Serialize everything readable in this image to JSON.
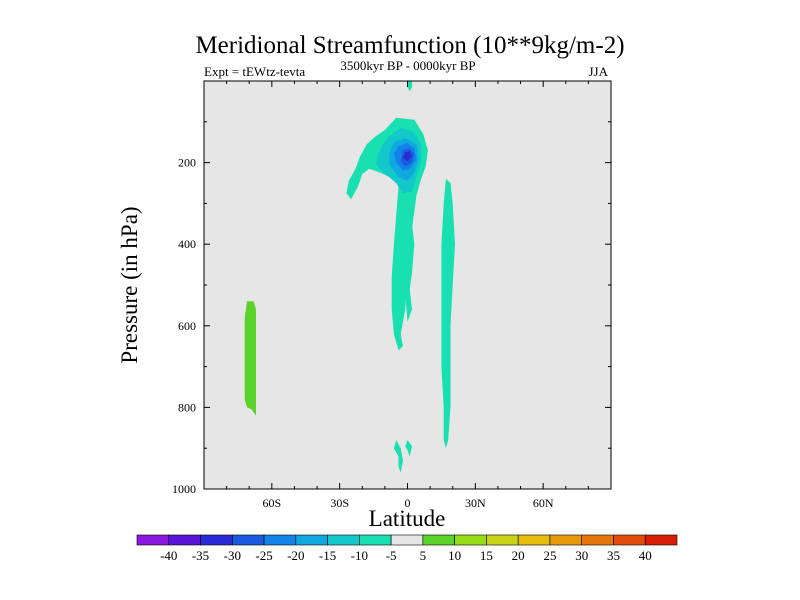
{
  "chart_data": {
    "type": "contour",
    "title": "Meridional Streamfunction (10**9kg/m-2)",
    "left_subtitle": "Expt = tEWtz-tevta",
    "center_subtitle": "3500kyr BP - 0000kyr BP",
    "right_subtitle": "JJA",
    "xlabel": "Latitude",
    "ylabel": "Pressure (in hPa)",
    "xlim": [
      -90,
      90
    ],
    "ylim": [
      0,
      1000
    ],
    "x_ticks": [
      {
        "value": -60,
        "label": "60S"
      },
      {
        "value": -30,
        "label": "30S"
      },
      {
        "value": 0,
        "label": "0"
      },
      {
        "value": 30,
        "label": "30N"
      },
      {
        "value": 60,
        "label": "60N"
      }
    ],
    "y_ticks": [
      {
        "value": 200,
        "label": "200"
      },
      {
        "value": 400,
        "label": "400"
      },
      {
        "value": 600,
        "label": "600"
      },
      {
        "value": 800,
        "label": "800"
      },
      {
        "value": 1000,
        "label": "1000"
      }
    ],
    "levels": [
      -40,
      -35,
      -30,
      -25,
      -20,
      -15,
      -10,
      -5,
      5,
      10,
      15,
      20,
      25,
      30,
      35,
      40
    ],
    "level_labels": [
      "-40",
      "-35",
      "-30",
      "-25",
      "-20",
      "-15",
      "-10",
      "-5",
      "5",
      "10",
      "15",
      "20",
      "25",
      "30",
      "35",
      "40"
    ],
    "colors": [
      "#8a18e0",
      "#5a14d8",
      "#2a2ad8",
      "#1a5ae0",
      "#1282e8",
      "#10a8e0",
      "#12c8c8",
      "#18e0b0",
      "#e6e6e6",
      "#5ad22a",
      "#96dc14",
      "#c8d214",
      "#e6bc0a",
      "#e69a0a",
      "#e6760a",
      "#e24c0a",
      "#d81e08"
    ],
    "background_color": "#e6e6e6",
    "regions": [
      {
        "name": "cyan-upper-lobe",
        "value": -7,
        "polygon": [
          [
            -10,
            120
          ],
          [
            -5,
            90
          ],
          [
            3,
            95
          ],
          [
            7,
            130
          ],
          [
            9,
            170
          ],
          [
            8,
            210
          ],
          [
            6,
            240
          ],
          [
            4,
            280
          ],
          [
            3,
            320
          ],
          [
            1,
            400
          ],
          [
            0,
            480
          ],
          [
            -1,
            560
          ],
          [
            -3,
            620
          ],
          [
            -2,
            650
          ],
          [
            -4,
            660
          ],
          [
            -6,
            620
          ],
          [
            -7,
            560
          ],
          [
            -7,
            480
          ],
          [
            -6,
            400
          ],
          [
            -5,
            330
          ],
          [
            -4,
            260
          ],
          [
            -6,
            240
          ],
          [
            -12,
            225
          ],
          [
            -17,
            215
          ],
          [
            -20,
            228
          ],
          [
            -22,
            260
          ],
          [
            -25,
            290
          ],
          [
            -27,
            275
          ],
          [
            -26,
            245
          ],
          [
            -23,
            215
          ],
          [
            -21,
            185
          ],
          [
            -18,
            155
          ],
          [
            -14,
            135
          ]
        ]
      },
      {
        "name": "blue-10",
        "value": -12,
        "polygon": [
          [
            -8,
            135
          ],
          [
            -3,
            115
          ],
          [
            3,
            125
          ],
          [
            6,
            155
          ],
          [
            6,
            195
          ],
          [
            4,
            235
          ],
          [
            2,
            270
          ],
          [
            -2,
            275
          ],
          [
            -5,
            250
          ],
          [
            -11,
            222
          ],
          [
            -14,
            205
          ],
          [
            -13,
            180
          ],
          [
            -11,
            155
          ]
        ]
      },
      {
        "name": "blue-15",
        "value": -17,
        "polygon": [
          [
            -6,
            150
          ],
          [
            -1,
            140
          ],
          [
            4,
            155
          ],
          [
            5,
            190
          ],
          [
            3,
            225
          ],
          [
            0,
            245
          ],
          [
            -4,
            235
          ],
          [
            -8,
            205
          ],
          [
            -8,
            175
          ]
        ]
      },
      {
        "name": "blue-20",
        "value": -22,
        "polygon": [
          [
            -4,
            160
          ],
          [
            0,
            152
          ],
          [
            3,
            165
          ],
          [
            4,
            192
          ],
          [
            1,
            215
          ],
          [
            -2,
            220
          ],
          [
            -5,
            200
          ],
          [
            -6,
            178
          ]
        ]
      },
      {
        "name": "blue-25",
        "value": -27,
        "polygon": [
          [
            -2,
            170
          ],
          [
            1,
            165
          ],
          [
            3,
            180
          ],
          [
            2,
            200
          ],
          [
            -1,
            210
          ],
          [
            -3,
            195
          ]
        ]
      },
      {
        "name": "blue-30",
        "value": -32,
        "polygon": [
          [
            -1,
            175
          ],
          [
            1,
            172
          ],
          [
            2,
            185
          ],
          [
            0,
            197
          ],
          [
            -2,
            188
          ]
        ]
      },
      {
        "name": "cyan-top-tail",
        "value": -7,
        "polygon": [
          [
            0,
            0
          ],
          [
            2,
            0
          ],
          [
            2,
            15
          ],
          [
            1,
            25
          ],
          [
            0,
            15
          ]
        ]
      },
      {
        "name": "cyan-mid-column",
        "value": -7,
        "polygon": [
          [
            0,
            330
          ],
          [
            2,
            350
          ],
          [
            3,
            400
          ],
          [
            2,
            470
          ],
          [
            1,
            510
          ],
          [
            2,
            560
          ],
          [
            0,
            590
          ],
          [
            -1,
            520
          ],
          [
            -1,
            440
          ],
          [
            -1,
            370
          ]
        ]
      },
      {
        "name": "cyan-15N-column",
        "value": -7,
        "polygon": [
          [
            17,
            240
          ],
          [
            19,
            250
          ],
          [
            20,
            300
          ],
          [
            21,
            400
          ],
          [
            20,
            500
          ],
          [
            19,
            600
          ],
          [
            19,
            700
          ],
          [
            19,
            800
          ],
          [
            18,
            880
          ],
          [
            17,
            900
          ],
          [
            16,
            880
          ],
          [
            16,
            800
          ],
          [
            15,
            700
          ],
          [
            15,
            600
          ],
          [
            15,
            500
          ],
          [
            15,
            400
          ],
          [
            16,
            300
          ]
        ]
      },
      {
        "name": "cyan-bottom-left",
        "value": -7,
        "polygon": [
          [
            -5,
            880
          ],
          [
            -3,
            900
          ],
          [
            -2,
            930
          ],
          [
            -3,
            960
          ],
          [
            -4,
            945
          ],
          [
            -4,
            920
          ],
          [
            -6,
            900
          ]
        ]
      },
      {
        "name": "cyan-bottom-right",
        "value": -7,
        "polygon": [
          [
            0,
            880
          ],
          [
            2,
            895
          ],
          [
            1,
            920
          ],
          [
            0,
            905
          ],
          [
            -1,
            895
          ]
        ]
      },
      {
        "name": "green-60S",
        "value": 7,
        "polygon": [
          [
            -71,
            540
          ],
          [
            -68,
            540
          ],
          [
            -67,
            560
          ],
          [
            -67,
            640
          ],
          [
            -67,
            740
          ],
          [
            -67,
            800
          ],
          [
            -67,
            820
          ],
          [
            -69,
            805
          ],
          [
            -71,
            800
          ],
          [
            -72,
            780
          ],
          [
            -72,
            680
          ],
          [
            -72,
            580
          ]
        ]
      }
    ]
  }
}
